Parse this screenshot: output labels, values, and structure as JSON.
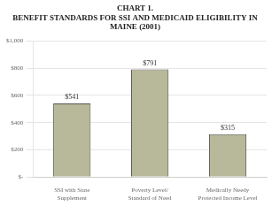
{
  "chart_data": {
    "type": "bar",
    "title": "CHART 1.\nBENEFIT STANDARDS FOR SSI AND MEDICAID ELIGIBILITY IN\nMAINE (2001)",
    "categories": [
      "SSI with State\nSupplement",
      "Poverty Level/\nStandard of Need",
      "Medically Needy\nProtected Income Level"
    ],
    "values": [
      541,
      791,
      315
    ],
    "value_labels": [
      "$541",
      "$791",
      "$315"
    ],
    "data_labels": true,
    "color": "#b8b89a",
    "ylim": [
      0,
      1000
    ],
    "yticks": [
      {
        "value": 0,
        "label": "$-"
      },
      {
        "value": 200,
        "label": "$200"
      },
      {
        "value": 400,
        "label": "$400"
      },
      {
        "value": 600,
        "label": "$600"
      },
      {
        "value": 800,
        "label": "$800"
      },
      {
        "value": 1000,
        "label": "$1,000"
      }
    ],
    "grid": true
  }
}
